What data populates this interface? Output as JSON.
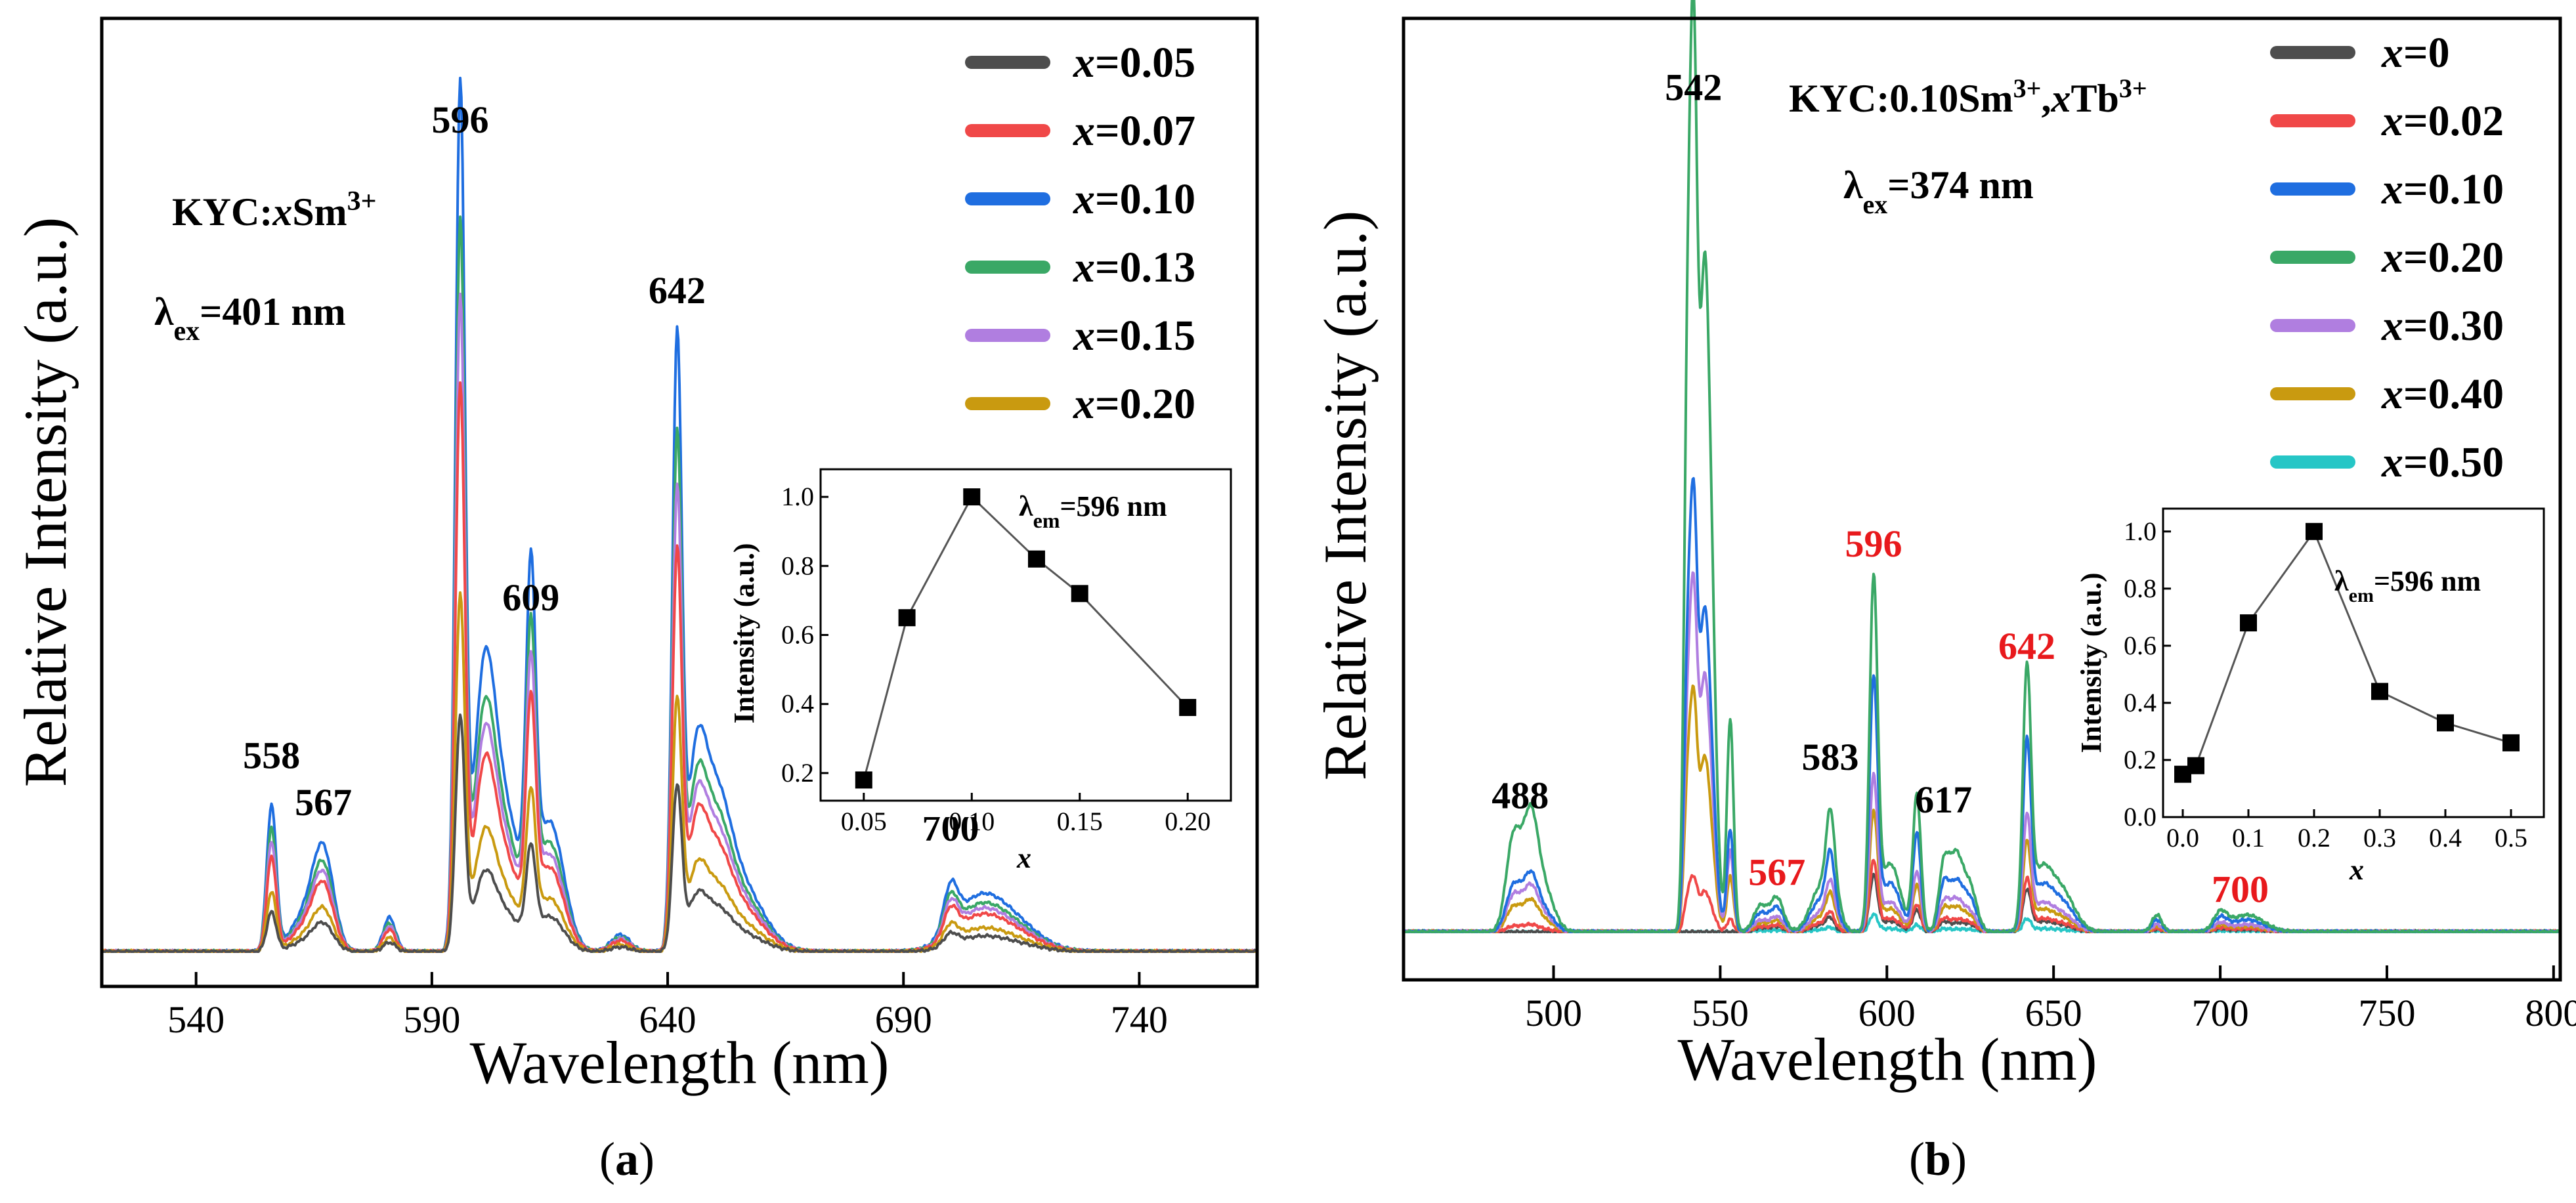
{
  "chart_data": [
    {
      "id": "a",
      "type": "line",
      "panel_label": "(a)",
      "xlabel": "Wavelength (nm)",
      "ylabel": "Relative Intensity (a.u.)",
      "xlim": [
        520,
        765
      ],
      "xticks": [
        540,
        590,
        640,
        690,
        740
      ],
      "ylim": [
        0,
        1.0
      ],
      "composition_label": "KYC:xSm3+",
      "excitation_label": "λex=401 nm",
      "peak_labels": [
        {
          "text": "558",
          "x": 556,
          "y": 0.215,
          "color": "#000000"
        },
        {
          "text": "567",
          "x": 567,
          "y": 0.16,
          "color": "#000000"
        },
        {
          "text": "596",
          "x": 596,
          "y": 0.96,
          "color": "#000000"
        },
        {
          "text": "609",
          "x": 611,
          "y": 0.4,
          "color": "#000000"
        },
        {
          "text": "642",
          "x": 642,
          "y": 0.76,
          "color": "#000000"
        },
        {
          "text": "700",
          "x": 700,
          "y": 0.13,
          "color": "#000000"
        }
      ],
      "series": [
        {
          "name": "x=0.05",
          "color": "#4d4d4d",
          "scale": 0.27
        },
        {
          "name": "x=0.07",
          "color": "#f04848",
          "scale": 0.65
        },
        {
          "name": "x=0.10",
          "color": "#1f6ee0",
          "scale": 1.0
        },
        {
          "name": "x=0.13",
          "color": "#3aa866",
          "scale": 0.84
        },
        {
          "name": "x=0.15",
          "color": "#b07ee0",
          "scale": 0.75
        },
        {
          "name": "x=0.20",
          "color": "#c99a10",
          "scale": 0.41
        }
      ],
      "inset": {
        "xlabel": "x",
        "ylabel": "Intensity (a.u.)",
        "annotation": "λem=596 nm",
        "xlim": [
          0.03,
          0.22
        ],
        "ylim": [
          0.12,
          1.08
        ],
        "xticks": [
          "0.05",
          "0.10",
          "0.15",
          "0.20"
        ],
        "yticks": [
          "0.2",
          "0.4",
          "0.6",
          "0.8",
          "1.0"
        ],
        "x": [
          0.05,
          0.07,
          0.1,
          0.13,
          0.15,
          0.2
        ],
        "y": [
          0.18,
          0.65,
          1.0,
          0.82,
          0.72,
          0.39
        ]
      }
    },
    {
      "id": "b",
      "type": "line",
      "panel_label": "(b)",
      "xlabel": "Wavelength (nm)",
      "ylabel": "Relative Intensity (a.u.)",
      "xlim": [
        455,
        802
      ],
      "xticks": [
        500,
        550,
        600,
        650,
        700,
        750,
        800
      ],
      "ylim": [
        0,
        1.0
      ],
      "composition_label": "KYC:0.10Sm3+,xTb3+",
      "excitation_label": "λex=374 nm",
      "peak_labels": [
        {
          "text": "542",
          "x": 542,
          "y": 0.975,
          "color": "#000000"
        },
        {
          "text": "488",
          "x": 490,
          "y": 0.145,
          "color": "#000000"
        },
        {
          "text": "567",
          "x": 567,
          "y": 0.055,
          "color": "#e8191c"
        },
        {
          "text": "583",
          "x": 583,
          "y": 0.19,
          "color": "#000000"
        },
        {
          "text": "596",
          "x": 596,
          "y": 0.44,
          "color": "#e8191c"
        },
        {
          "text": "617",
          "x": 617,
          "y": 0.14,
          "color": "#000000"
        },
        {
          "text": "642",
          "x": 642,
          "y": 0.32,
          "color": "#e8191c"
        },
        {
          "text": "700",
          "x": 706,
          "y": 0.035,
          "color": "#e8191c"
        }
      ],
      "series": [
        {
          "name": "x=0",
          "color": "#4d4d4d",
          "tb": 0.0,
          "sm": 0.16
        },
        {
          "name": "x=0.02",
          "color": "#f04848",
          "tb": 0.06,
          "sm": 0.2
        },
        {
          "name": "x=0.10",
          "color": "#1f6ee0",
          "tb": 0.48,
          "sm": 0.72
        },
        {
          "name": "x=0.20",
          "color": "#3aa866",
          "tb": 1.0,
          "sm": 1.0
        },
        {
          "name": "x=0.30",
          "color": "#b07ee0",
          "tb": 0.38,
          "sm": 0.44
        },
        {
          "name": "x=0.40",
          "color": "#c99a10",
          "tb": 0.26,
          "sm": 0.34
        },
        {
          "name": "x=0.50",
          "color": "#26c6c6",
          "tb": 0.0,
          "sm": 0.05
        }
      ],
      "inset": {
        "xlabel": "x",
        "ylabel": "Intensity (a.u.)",
        "annotation": "λem=596 nm",
        "xlim": [
          -0.03,
          0.55
        ],
        "ylim": [
          0.0,
          1.08
        ],
        "xticks": [
          "0.0",
          "0.1",
          "0.2",
          "0.3",
          "0.4",
          "0.5"
        ],
        "yticks": [
          "0.0",
          "0.2",
          "0.4",
          "0.6",
          "0.8",
          "1.0"
        ],
        "x": [
          0.0,
          0.02,
          0.1,
          0.2,
          0.3,
          0.4,
          0.5
        ],
        "y": [
          0.15,
          0.18,
          0.68,
          1.0,
          0.44,
          0.33,
          0.26
        ]
      }
    }
  ]
}
